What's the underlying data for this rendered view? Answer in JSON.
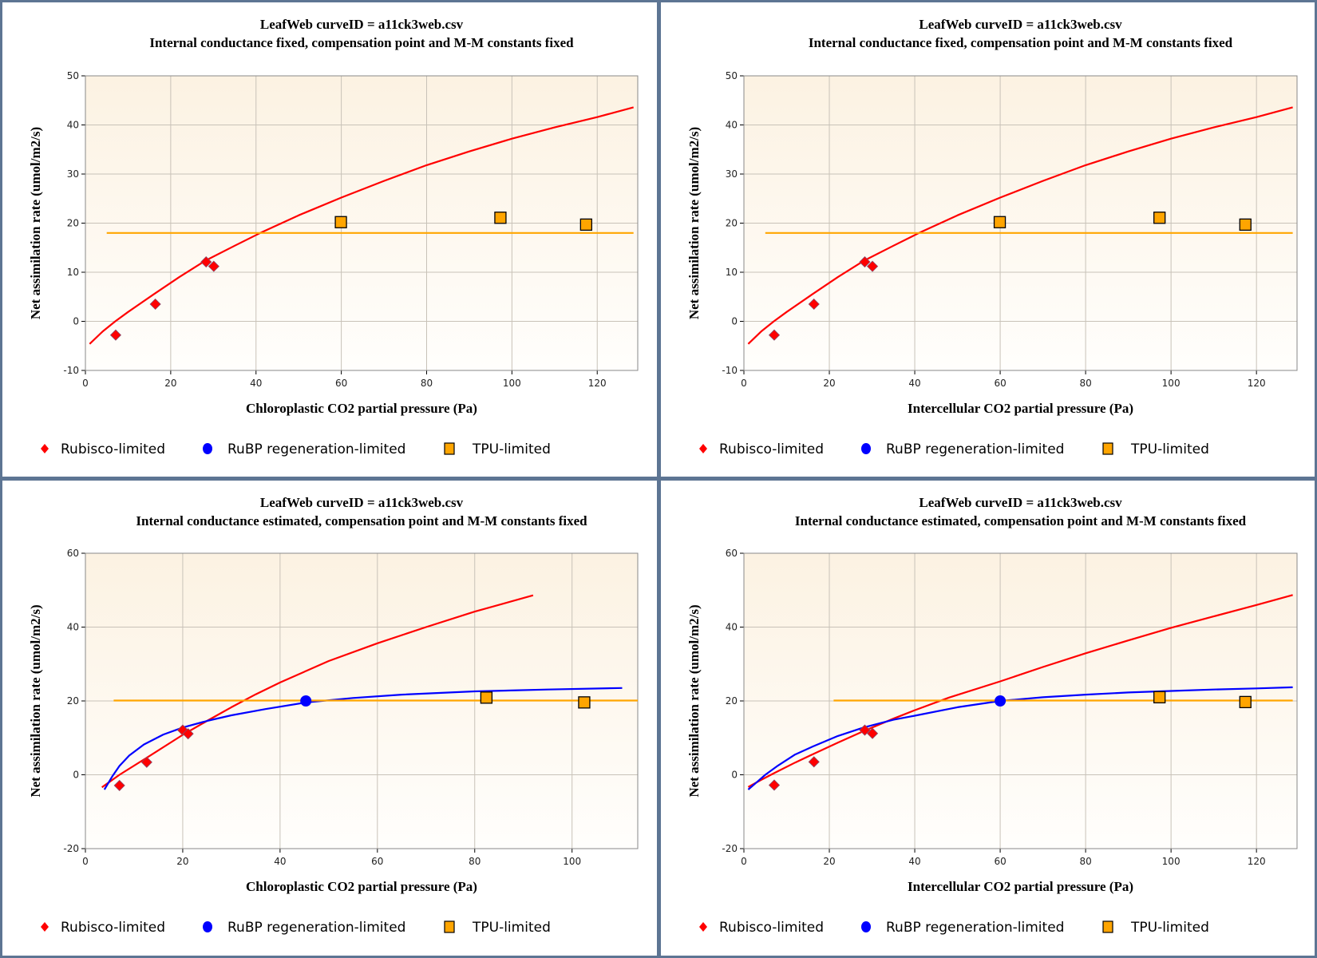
{
  "page": {
    "frame_color": "#5d7593"
  },
  "colors": {
    "rubisco": "#ff0000",
    "rubp": "#0000ff",
    "tpu": "#ffa500",
    "marker_outline": "#000000",
    "grid": "#c8c2b8",
    "axis": "#888888",
    "plot_bg_top": "#fcf2e2",
    "plot_bg_bottom": "#fffefc"
  },
  "legend": {
    "items": [
      {
        "label": "Rubisco-limited",
        "marker": "diamond",
        "color": "#ff0000"
      },
      {
        "label": "RuBP regeneration-limited",
        "marker": "circle",
        "color": "#0000ff"
      },
      {
        "label": "TPU-limited",
        "marker": "square",
        "color": "#ffa500"
      }
    ]
  },
  "chart_data": [
    {
      "id": "top-left",
      "type": "scatter",
      "title": "LeafWeb curveID = a11ck3web.csv",
      "subtitle": "Internal conductance fixed, compensation point and M-M constants fixed",
      "xlabel": "Chloroplastic CO2 partial pressure (Pa)",
      "ylabel": "Net assimilation rate (umol/m2/s)",
      "xlim": [
        0,
        129.5
      ],
      "ylim": [
        -10,
        50
      ],
      "xticks": [
        0,
        20,
        40,
        60,
        80,
        100,
        120
      ],
      "yticks": [
        -10,
        0,
        10,
        20,
        30,
        40,
        50
      ],
      "grid": true,
      "legend_position": "bottom",
      "series": [
        {
          "name": "Rubisco-limited fit",
          "kind": "line",
          "color": "#ff0000",
          "points": [
            [
              1,
              -4.6
            ],
            [
              4,
              -2.1
            ],
            [
              7,
              0
            ],
            [
              10,
              1.9
            ],
            [
              16,
              5.5
            ],
            [
              22,
              9.0
            ],
            [
              28,
              12.3
            ],
            [
              35,
              15.4
            ],
            [
              41,
              18
            ],
            [
              50,
              21.6
            ],
            [
              60,
              25.2
            ],
            [
              70,
              28.6
            ],
            [
              80,
              31.8
            ],
            [
              90,
              34.6
            ],
            [
              100,
              37.2
            ],
            [
              110,
              39.5
            ],
            [
              120,
              41.6
            ],
            [
              128.5,
              43.6
            ]
          ]
        },
        {
          "name": "TPU-limited fit",
          "kind": "line",
          "color": "#ffa500",
          "points": [
            [
              5,
              18
            ],
            [
              128.5,
              18
            ]
          ]
        },
        {
          "name": "Rubisco-limited",
          "kind": "diamond",
          "color": "#ff0000",
          "points": [
            [
              7.1,
              -2.8
            ],
            [
              16.4,
              3.5
            ],
            [
              28.3,
              12.1
            ],
            [
              30.1,
              11.2
            ]
          ]
        },
        {
          "name": "TPU-limited",
          "kind": "square",
          "color": "#ffa500",
          "points": [
            [
              59.9,
              20.2
            ],
            [
              97.3,
              21.1
            ],
            [
              117.4,
              19.7
            ]
          ]
        }
      ]
    },
    {
      "id": "top-right",
      "type": "scatter",
      "title": "LeafWeb curveID = a11ck3web.csv",
      "subtitle": "Internal conductance fixed, compensation point and M-M constants fixed",
      "xlabel": "Intercellular CO2 partial pressure (Pa)",
      "ylabel": "Net assimilation rate (umol/m2/s)",
      "xlim": [
        0,
        129.5
      ],
      "ylim": [
        -10,
        50
      ],
      "xticks": [
        0,
        20,
        40,
        60,
        80,
        100,
        120
      ],
      "yticks": [
        -10,
        0,
        10,
        20,
        30,
        40,
        50
      ],
      "grid": true,
      "legend_position": "bottom",
      "series": [
        {
          "name": "Rubisco-limited fit",
          "kind": "line",
          "color": "#ff0000",
          "points": [
            [
              1,
              -4.6
            ],
            [
              4,
              -2.1
            ],
            [
              7,
              0
            ],
            [
              10,
              1.9
            ],
            [
              16,
              5.5
            ],
            [
              22,
              9.0
            ],
            [
              28,
              12.3
            ],
            [
              35,
              15.4
            ],
            [
              41,
              18
            ],
            [
              50,
              21.6
            ],
            [
              60,
              25.2
            ],
            [
              70,
              28.6
            ],
            [
              80,
              31.8
            ],
            [
              90,
              34.6
            ],
            [
              100,
              37.2
            ],
            [
              110,
              39.5
            ],
            [
              120,
              41.6
            ],
            [
              128.5,
              43.6
            ]
          ]
        },
        {
          "name": "TPU-limited fit",
          "kind": "line",
          "color": "#ffa500",
          "points": [
            [
              5,
              18
            ],
            [
              128.5,
              18
            ]
          ]
        },
        {
          "name": "Rubisco-limited",
          "kind": "diamond",
          "color": "#ff0000",
          "points": [
            [
              7.1,
              -2.8
            ],
            [
              16.4,
              3.5
            ],
            [
              28.3,
              12.1
            ],
            [
              30.1,
              11.2
            ]
          ]
        },
        {
          "name": "TPU-limited",
          "kind": "square",
          "color": "#ffa500",
          "points": [
            [
              59.9,
              20.2
            ],
            [
              97.3,
              21.1
            ],
            [
              117.4,
              19.7
            ]
          ]
        }
      ]
    },
    {
      "id": "bottom-left",
      "type": "scatter",
      "title": "LeafWeb curveID = a11ck3web.csv",
      "subtitle": "Internal conductance estimated, compensation point and M-M constants fixed",
      "xlabel": "Chloroplastic CO2 partial pressure (Pa)",
      "ylabel": "Net assimilation rate (umol/m2/s)",
      "xlim": [
        0,
        113.5
      ],
      "ylim": [
        -20,
        60
      ],
      "xticks": [
        0,
        20,
        40,
        60,
        80,
        100
      ],
      "yticks": [
        -20,
        0,
        20,
        40,
        60
      ],
      "grid": true,
      "legend_position": "bottom",
      "series": [
        {
          "name": "Rubisco-limited fit",
          "kind": "line",
          "color": "#ff0000",
          "points": [
            [
              3.4,
              -3.4
            ],
            [
              7,
              0
            ],
            [
              12.6,
              4.6
            ],
            [
              20,
              10.8
            ],
            [
              25,
              14.6
            ],
            [
              30,
              18.3
            ],
            [
              35,
              21.8
            ],
            [
              40,
              25.0
            ],
            [
              50,
              30.8
            ],
            [
              60,
              35.6
            ],
            [
              70,
              40.0
            ],
            [
              80,
              44.2
            ],
            [
              92,
              48.6
            ]
          ]
        },
        {
          "name": "RuBP regeneration-limited fit",
          "kind": "line",
          "color": "#0000ff",
          "points": [
            [
              3.9,
              -4
            ],
            [
              5.5,
              -0.5
            ],
            [
              7,
              2.4
            ],
            [
              9,
              5.2
            ],
            [
              12,
              8.2
            ],
            [
              16,
              10.9
            ],
            [
              20,
              12.8
            ],
            [
              25,
              14.6
            ],
            [
              30,
              16.1
            ],
            [
              37,
              17.8
            ],
            [
              45.3,
              19.6
            ],
            [
              55,
              20.8
            ],
            [
              65,
              21.7
            ],
            [
              80,
              22.6
            ],
            [
              95,
              23.1
            ],
            [
              110.3,
              23.5
            ]
          ]
        },
        {
          "name": "TPU-limited fit",
          "kind": "line",
          "color": "#ffa500",
          "points": [
            [
              5.8,
              20.1
            ],
            [
              113.5,
              20.1
            ]
          ]
        },
        {
          "name": "Rubisco-limited",
          "kind": "diamond",
          "color": "#ff0000",
          "points": [
            [
              7.0,
              -2.9
            ],
            [
              12.6,
              3.4
            ],
            [
              20.0,
              12.1
            ],
            [
              21.1,
              11.1
            ]
          ]
        },
        {
          "name": "RuBP regeneration-limited",
          "kind": "circle",
          "color": "#0000ff",
          "points": [
            [
              45.3,
              20.0
            ]
          ]
        },
        {
          "name": "TPU-limited",
          "kind": "square",
          "color": "#ffa500",
          "points": [
            [
              82.4,
              20.9
            ],
            [
              102.5,
              19.6
            ]
          ]
        }
      ]
    },
    {
      "id": "bottom-right",
      "type": "scatter",
      "title": "LeafWeb curveID = a11ck3web.csv",
      "subtitle": "Internal conductance estimated, compensation point and M-M constants fixed",
      "xlabel": "Intercellular CO2 partial pressure (Pa)",
      "ylabel": "Net assimilation rate (umol/m2/s)",
      "xlim": [
        0,
        129.5
      ],
      "ylim": [
        -20,
        60
      ],
      "xticks": [
        0,
        20,
        40,
        60,
        80,
        100,
        120
      ],
      "yticks": [
        -20,
        0,
        20,
        40,
        60
      ],
      "grid": true,
      "legend_position": "bottom",
      "series": [
        {
          "name": "Rubisco-limited fit",
          "kind": "line",
          "color": "#ff0000",
          "points": [
            [
              1,
              -3.3
            ],
            [
              4,
              -1.4
            ],
            [
              7,
              0.4
            ],
            [
              12,
              3.3
            ],
            [
              16,
              5.5
            ],
            [
              22,
              8.7
            ],
            [
              28,
              11.8
            ],
            [
              35,
              15.2
            ],
            [
              40,
              17.5
            ],
            [
              48,
              20.9
            ],
            [
              60,
              25.3
            ],
            [
              70,
              29.2
            ],
            [
              80,
              32.9
            ],
            [
              90,
              36.4
            ],
            [
              100,
              39.8
            ],
            [
              110,
              42.9
            ],
            [
              120,
              46.0
            ],
            [
              128.5,
              48.7
            ]
          ]
        },
        {
          "name": "RuBP regeneration-limited fit",
          "kind": "line",
          "color": "#0000ff",
          "points": [
            [
              1,
              -4
            ],
            [
              3,
              -2
            ],
            [
              5,
              0
            ],
            [
              8,
              2.5
            ],
            [
              12,
              5.5
            ],
            [
              16,
              7.6
            ],
            [
              22,
              10.5
            ],
            [
              28,
              12.8
            ],
            [
              35,
              14.9
            ],
            [
              40,
              16.0
            ],
            [
              50,
              18.3
            ],
            [
              60,
              20
            ],
            [
              70,
              21.0
            ],
            [
              80,
              21.7
            ],
            [
              90,
              22.3
            ],
            [
              100,
              22.7
            ],
            [
              110,
              23.1
            ],
            [
              120,
              23.4
            ],
            [
              128.5,
              23.7
            ]
          ]
        },
        {
          "name": "TPU-limited fit",
          "kind": "line",
          "color": "#ffa500",
          "points": [
            [
              21,
              20.1
            ],
            [
              128.5,
              20.1
            ]
          ]
        },
        {
          "name": "Rubisco-limited",
          "kind": "diamond",
          "color": "#ff0000",
          "points": [
            [
              7.1,
              -2.8
            ],
            [
              16.4,
              3.5
            ],
            [
              28.3,
              12.1
            ],
            [
              30.1,
              11.2
            ]
          ]
        },
        {
          "name": "RuBP regeneration-limited",
          "kind": "circle",
          "color": "#0000ff",
          "points": [
            [
              60.0,
              20.0
            ]
          ]
        },
        {
          "name": "TPU-limited",
          "kind": "square",
          "color": "#ffa500",
          "points": [
            [
              97.3,
              21.0
            ],
            [
              117.4,
              19.7
            ]
          ]
        }
      ]
    }
  ]
}
